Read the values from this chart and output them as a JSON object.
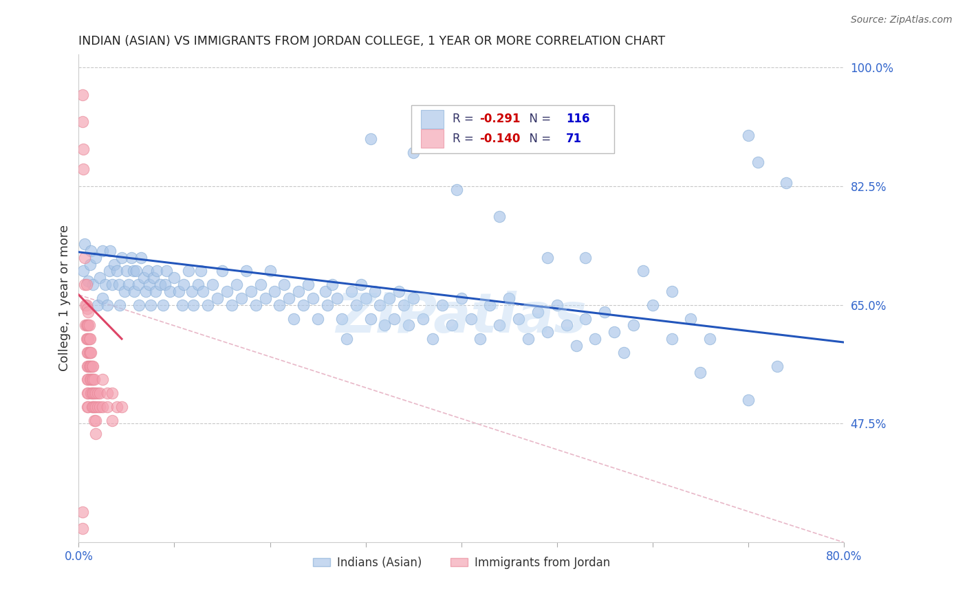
{
  "title": "INDIAN (ASIAN) VS IMMIGRANTS FROM JORDAN COLLEGE, 1 YEAR OR MORE CORRELATION CHART",
  "source": "Source: ZipAtlas.com",
  "ylabel": "College, 1 year or more",
  "xlim": [
    0.0,
    0.8
  ],
  "ylim": [
    0.3,
    1.02
  ],
  "grid_color": "#c8c8c8",
  "background_color": "#ffffff",
  "blue_color": "#a8c4e8",
  "pink_color": "#f4a0b0",
  "blue_line_color": "#2255bb",
  "pink_line_color": "#dd4466",
  "pink_dashed_color": "#e8b8c8",
  "legend_R1": "-0.291",
  "legend_N1": "116",
  "legend_R2": "-0.140",
  "legend_N2": "71",
  "legend_label1": "Indians (Asian)",
  "legend_label2": "Immigrants from Jordan",
  "watermark": "ZIPatlas",
  "ytick_vals": [
    0.475,
    0.65,
    0.825,
    1.0
  ],
  "ytick_labels": [
    "47.5%",
    "65.0%",
    "82.5%",
    "100.0%"
  ],
  "blue_trendline": [
    0.0,
    0.728,
    0.8,
    0.595
  ],
  "pink_trendline_solid": [
    0.0,
    0.665,
    0.045,
    0.6
  ],
  "pink_trendline_dashed": [
    0.0,
    0.665,
    0.8,
    0.3
  ],
  "blue_scatter": [
    [
      0.005,
      0.7
    ],
    [
      0.006,
      0.74
    ],
    [
      0.01,
      0.685
    ],
    [
      0.012,
      0.71
    ],
    [
      0.013,
      0.73
    ],
    [
      0.015,
      0.68
    ],
    [
      0.018,
      0.72
    ],
    [
      0.02,
      0.65
    ],
    [
      0.022,
      0.69
    ],
    [
      0.025,
      0.66
    ],
    [
      0.025,
      0.73
    ],
    [
      0.028,
      0.68
    ],
    [
      0.03,
      0.65
    ],
    [
      0.032,
      0.7
    ],
    [
      0.033,
      0.73
    ],
    [
      0.035,
      0.68
    ],
    [
      0.037,
      0.71
    ],
    [
      0.04,
      0.7
    ],
    [
      0.042,
      0.68
    ],
    [
      0.043,
      0.65
    ],
    [
      0.045,
      0.72
    ],
    [
      0.048,
      0.67
    ],
    [
      0.05,
      0.7
    ],
    [
      0.052,
      0.68
    ],
    [
      0.055,
      0.72
    ],
    [
      0.057,
      0.7
    ],
    [
      0.058,
      0.67
    ],
    [
      0.06,
      0.7
    ],
    [
      0.062,
      0.68
    ],
    [
      0.063,
      0.65
    ],
    [
      0.065,
      0.72
    ],
    [
      0.068,
      0.69
    ],
    [
      0.07,
      0.67
    ],
    [
      0.072,
      0.7
    ],
    [
      0.074,
      0.68
    ],
    [
      0.075,
      0.65
    ],
    [
      0.078,
      0.69
    ],
    [
      0.08,
      0.67
    ],
    [
      0.082,
      0.7
    ],
    [
      0.085,
      0.68
    ],
    [
      0.088,
      0.65
    ],
    [
      0.09,
      0.68
    ],
    [
      0.092,
      0.7
    ],
    [
      0.095,
      0.67
    ],
    [
      0.1,
      0.69
    ],
    [
      0.105,
      0.67
    ],
    [
      0.108,
      0.65
    ],
    [
      0.11,
      0.68
    ],
    [
      0.115,
      0.7
    ],
    [
      0.118,
      0.67
    ],
    [
      0.12,
      0.65
    ],
    [
      0.125,
      0.68
    ],
    [
      0.128,
      0.7
    ],
    [
      0.13,
      0.67
    ],
    [
      0.135,
      0.65
    ],
    [
      0.14,
      0.68
    ],
    [
      0.145,
      0.66
    ],
    [
      0.15,
      0.7
    ],
    [
      0.155,
      0.67
    ],
    [
      0.16,
      0.65
    ],
    [
      0.165,
      0.68
    ],
    [
      0.17,
      0.66
    ],
    [
      0.175,
      0.7
    ],
    [
      0.18,
      0.67
    ],
    [
      0.185,
      0.65
    ],
    [
      0.19,
      0.68
    ],
    [
      0.195,
      0.66
    ],
    [
      0.2,
      0.7
    ],
    [
      0.205,
      0.67
    ],
    [
      0.21,
      0.65
    ],
    [
      0.215,
      0.68
    ],
    [
      0.22,
      0.66
    ],
    [
      0.225,
      0.63
    ],
    [
      0.23,
      0.67
    ],
    [
      0.235,
      0.65
    ],
    [
      0.24,
      0.68
    ],
    [
      0.245,
      0.66
    ],
    [
      0.25,
      0.63
    ],
    [
      0.258,
      0.67
    ],
    [
      0.26,
      0.65
    ],
    [
      0.265,
      0.68
    ],
    [
      0.27,
      0.66
    ],
    [
      0.275,
      0.63
    ],
    [
      0.28,
      0.6
    ],
    [
      0.285,
      0.67
    ],
    [
      0.29,
      0.65
    ],
    [
      0.295,
      0.68
    ],
    [
      0.3,
      0.66
    ],
    [
      0.305,
      0.63
    ],
    [
      0.31,
      0.67
    ],
    [
      0.315,
      0.65
    ],
    [
      0.32,
      0.62
    ],
    [
      0.325,
      0.66
    ],
    [
      0.33,
      0.63
    ],
    [
      0.335,
      0.67
    ],
    [
      0.34,
      0.65
    ],
    [
      0.345,
      0.62
    ],
    [
      0.35,
      0.66
    ],
    [
      0.36,
      0.63
    ],
    [
      0.37,
      0.6
    ],
    [
      0.38,
      0.65
    ],
    [
      0.39,
      0.62
    ],
    [
      0.4,
      0.66
    ],
    [
      0.41,
      0.63
    ],
    [
      0.42,
      0.6
    ],
    [
      0.43,
      0.65
    ],
    [
      0.44,
      0.62
    ],
    [
      0.45,
      0.66
    ],
    [
      0.46,
      0.63
    ],
    [
      0.47,
      0.6
    ],
    [
      0.48,
      0.64
    ],
    [
      0.49,
      0.61
    ],
    [
      0.5,
      0.65
    ],
    [
      0.51,
      0.62
    ],
    [
      0.52,
      0.59
    ],
    [
      0.53,
      0.63
    ],
    [
      0.54,
      0.6
    ],
    [
      0.55,
      0.64
    ],
    [
      0.56,
      0.61
    ],
    [
      0.57,
      0.58
    ],
    [
      0.58,
      0.62
    ],
    [
      0.6,
      0.65
    ],
    [
      0.62,
      0.6
    ],
    [
      0.64,
      0.63
    ],
    [
      0.66,
      0.6
    ],
    [
      0.7,
      0.9
    ],
    [
      0.71,
      0.86
    ],
    [
      0.74,
      0.83
    ],
    [
      0.305,
      0.895
    ],
    [
      0.35,
      0.875
    ],
    [
      0.395,
      0.82
    ],
    [
      0.44,
      0.78
    ],
    [
      0.49,
      0.72
    ],
    [
      0.53,
      0.72
    ],
    [
      0.59,
      0.7
    ],
    [
      0.62,
      0.67
    ],
    [
      0.65,
      0.55
    ],
    [
      0.7,
      0.51
    ],
    [
      0.73,
      0.56
    ]
  ],
  "pink_scatter": [
    [
      0.004,
      0.96
    ],
    [
      0.004,
      0.92
    ],
    [
      0.005,
      0.88
    ],
    [
      0.005,
      0.85
    ],
    [
      0.006,
      0.72
    ],
    [
      0.006,
      0.68
    ],
    [
      0.007,
      0.65
    ],
    [
      0.007,
      0.62
    ],
    [
      0.008,
      0.68
    ],
    [
      0.008,
      0.65
    ],
    [
      0.008,
      0.62
    ],
    [
      0.008,
      0.6
    ],
    [
      0.009,
      0.645
    ],
    [
      0.009,
      0.62
    ],
    [
      0.009,
      0.6
    ],
    [
      0.009,
      0.58
    ],
    [
      0.009,
      0.56
    ],
    [
      0.009,
      0.54
    ],
    [
      0.009,
      0.52
    ],
    [
      0.009,
      0.5
    ],
    [
      0.01,
      0.64
    ],
    [
      0.01,
      0.62
    ],
    [
      0.01,
      0.6
    ],
    [
      0.01,
      0.58
    ],
    [
      0.01,
      0.56
    ],
    [
      0.01,
      0.54
    ],
    [
      0.01,
      0.52
    ],
    [
      0.01,
      0.5
    ],
    [
      0.011,
      0.62
    ],
    [
      0.011,
      0.6
    ],
    [
      0.011,
      0.58
    ],
    [
      0.011,
      0.56
    ],
    [
      0.012,
      0.6
    ],
    [
      0.012,
      0.58
    ],
    [
      0.012,
      0.56
    ],
    [
      0.012,
      0.54
    ],
    [
      0.013,
      0.58
    ],
    [
      0.013,
      0.56
    ],
    [
      0.013,
      0.54
    ],
    [
      0.013,
      0.52
    ],
    [
      0.014,
      0.56
    ],
    [
      0.014,
      0.54
    ],
    [
      0.014,
      0.52
    ],
    [
      0.014,
      0.5
    ],
    [
      0.015,
      0.56
    ],
    [
      0.015,
      0.54
    ],
    [
      0.015,
      0.52
    ],
    [
      0.015,
      0.5
    ],
    [
      0.016,
      0.54
    ],
    [
      0.016,
      0.52
    ],
    [
      0.016,
      0.5
    ],
    [
      0.016,
      0.48
    ],
    [
      0.018,
      0.52
    ],
    [
      0.018,
      0.5
    ],
    [
      0.018,
      0.48
    ],
    [
      0.018,
      0.46
    ],
    [
      0.02,
      0.52
    ],
    [
      0.02,
      0.5
    ],
    [
      0.022,
      0.52
    ],
    [
      0.022,
      0.5
    ],
    [
      0.025,
      0.54
    ],
    [
      0.025,
      0.5
    ],
    [
      0.03,
      0.52
    ],
    [
      0.03,
      0.5
    ],
    [
      0.035,
      0.52
    ],
    [
      0.035,
      0.48
    ],
    [
      0.04,
      0.5
    ],
    [
      0.045,
      0.5
    ],
    [
      0.004,
      0.345
    ],
    [
      0.004,
      0.32
    ]
  ]
}
